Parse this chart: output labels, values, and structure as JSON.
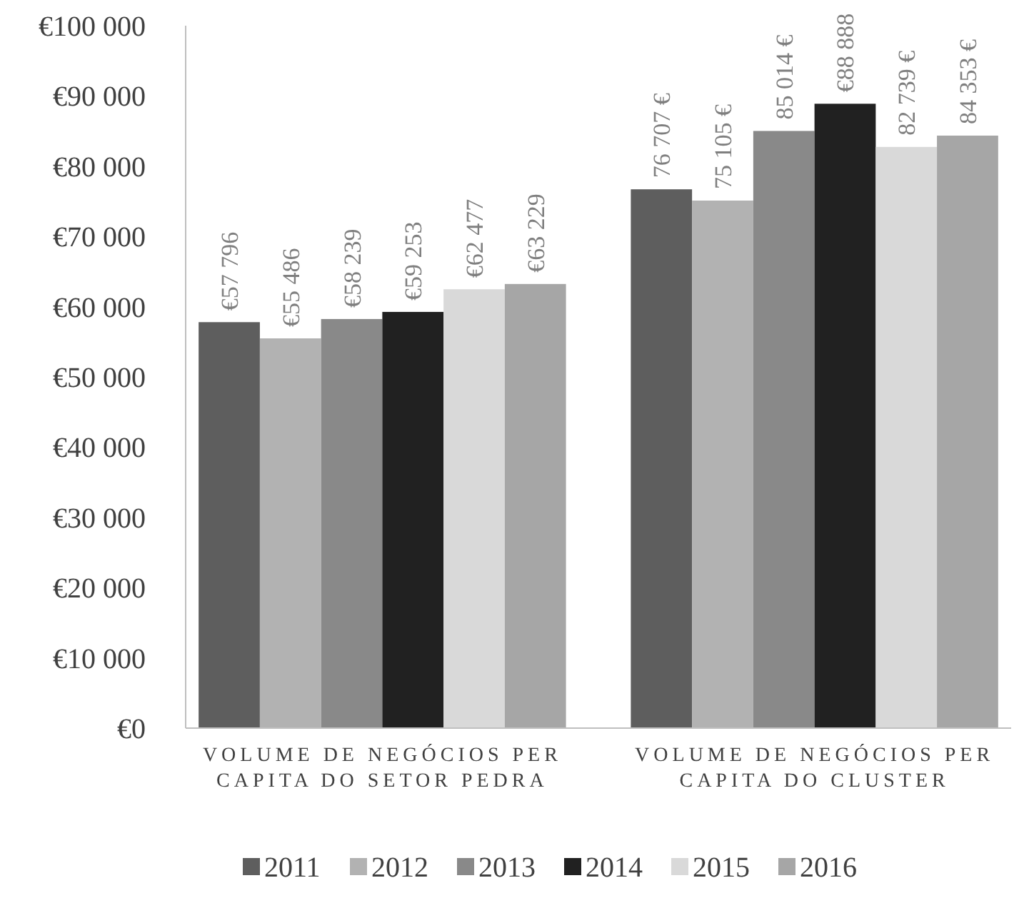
{
  "chart_data": {
    "type": "bar",
    "categories": [
      "VOLUME DE NEGÓCIOS PER CAPITA DO SETOR PEDRA",
      "VOLUME DE NEGÓCIOS PER CAPITA DO CLUSTER"
    ],
    "series": [
      {
        "name": "2011",
        "color": "#5e5e5e",
        "values": [
          57796,
          76707
        ],
        "value_labels": [
          "€57 796",
          "76 707 €"
        ]
      },
      {
        "name": "2012",
        "color": "#b2b2b2",
        "values": [
          55486,
          75105
        ],
        "value_labels": [
          "€55 486",
          "75 105 €"
        ]
      },
      {
        "name": "2013",
        "color": "#898989",
        "values": [
          58239,
          85014
        ],
        "value_labels": [
          "€58 239",
          "85 014 €"
        ]
      },
      {
        "name": "2014",
        "color": "#212121",
        "values": [
          59253,
          88888
        ],
        "value_labels": [
          "€59 253",
          "€88 888"
        ]
      },
      {
        "name": "2015",
        "color": "#d9d9d9",
        "values": [
          62477,
          82739
        ],
        "value_labels": [
          "€62 477",
          "82 739 €"
        ]
      },
      {
        "name": "2016",
        "color": "#a6a6a6",
        "values": [
          63229,
          84353
        ],
        "value_labels": [
          "€63 229",
          "84 353 €"
        ]
      }
    ],
    "ylim": [
      0,
      100000
    ],
    "yticks": [
      {
        "value": 0,
        "label": "€0"
      },
      {
        "value": 10000,
        "label": "€10 000"
      },
      {
        "value": 20000,
        "label": "€20 000"
      },
      {
        "value": 30000,
        "label": "€30 000"
      },
      {
        "value": 40000,
        "label": "€40 000"
      },
      {
        "value": 50000,
        "label": "€50 000"
      },
      {
        "value": 60000,
        "label": "€60 000"
      },
      {
        "value": 70000,
        "label": "€70 000"
      },
      {
        "value": 80000,
        "label": "€80 000"
      },
      {
        "value": 90000,
        "label": "€90 000"
      },
      {
        "value": 100000,
        "label": "€100 000"
      }
    ],
    "grid": false,
    "legend": "bottom"
  }
}
